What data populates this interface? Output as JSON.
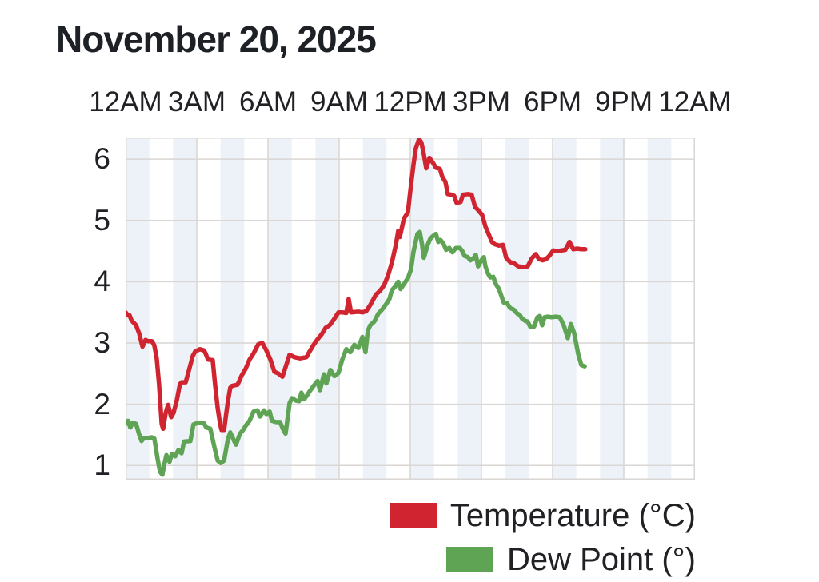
{
  "title": "November 20, 2025",
  "colors": {
    "temperature": "#d02530",
    "dew_point": "#5fa354",
    "band": "#edf2f8",
    "gridline": "#d9d6d3",
    "text": "#202124"
  },
  "legend": {
    "position": "bottom-right",
    "temperature_label": "Temperature (°C)",
    "dew_point_label": "Dew Point (°)"
  },
  "chart_data": {
    "type": "line",
    "title": "November 20, 2025",
    "xlabel": "",
    "ylabel": "",
    "x_axis": {
      "position": "top",
      "unit": "hour-of-day",
      "range_hours": [
        0,
        24
      ],
      "tick_hours": [
        0,
        3,
        6,
        9,
        12,
        15,
        18,
        21,
        24
      ],
      "tick_labels": [
        "12AM",
        "3AM",
        "6AM",
        "9AM",
        "12PM",
        "3PM",
        "6PM",
        "9PM",
        "12AM"
      ]
    },
    "y_axis": {
      "ticks": [
        1,
        2,
        3,
        4,
        5,
        6
      ],
      "range": [
        0.769,
        6.354
      ]
    },
    "grid": true,
    "background_bands": "alternating 1-hour vertical bands, even hours shaded light blue",
    "legend_position": "bottom-right",
    "series": [
      {
        "name": "Temperature (°C)",
        "color": "#d02530",
        "points": [
          [
            0.0,
            3.5
          ],
          [
            0.1,
            3.45
          ],
          [
            0.17,
            3.45
          ],
          [
            0.25,
            3.37
          ],
          [
            0.34,
            3.33
          ],
          [
            0.44,
            3.29
          ],
          [
            0.51,
            3.22
          ],
          [
            0.57,
            3.16
          ],
          [
            0.71,
            2.94
          ],
          [
            0.84,
            3.05
          ],
          [
            0.94,
            3.03
          ],
          [
            1.11,
            3.03
          ],
          [
            1.21,
            2.96
          ],
          [
            1.31,
            2.75
          ],
          [
            1.41,
            2.33
          ],
          [
            1.52,
            1.68
          ],
          [
            1.58,
            1.6
          ],
          [
            1.69,
            1.86
          ],
          [
            1.79,
            1.99
          ],
          [
            1.92,
            1.79
          ],
          [
            2.02,
            1.86
          ],
          [
            2.16,
            2.07
          ],
          [
            2.29,
            2.33
          ],
          [
            2.36,
            2.36
          ],
          [
            2.53,
            2.36
          ],
          [
            2.7,
            2.6
          ],
          [
            2.83,
            2.79
          ],
          [
            2.93,
            2.86
          ],
          [
            3.13,
            2.9
          ],
          [
            3.3,
            2.88
          ],
          [
            3.37,
            2.83
          ],
          [
            3.47,
            2.73
          ],
          [
            3.67,
            2.72
          ],
          [
            3.77,
            2.33
          ],
          [
            3.88,
            1.94
          ],
          [
            3.98,
            1.68
          ],
          [
            4.04,
            1.58
          ],
          [
            4.15,
            1.58
          ],
          [
            4.25,
            1.88
          ],
          [
            4.31,
            2.05
          ],
          [
            4.41,
            2.27
          ],
          [
            4.48,
            2.3
          ],
          [
            4.72,
            2.32
          ],
          [
            4.89,
            2.47
          ],
          [
            5.06,
            2.58
          ],
          [
            5.22,
            2.73
          ],
          [
            5.39,
            2.83
          ],
          [
            5.59,
            2.98
          ],
          [
            5.76,
            3.0
          ],
          [
            5.93,
            2.88
          ],
          [
            6.1,
            2.73
          ],
          [
            6.27,
            2.53
          ],
          [
            6.44,
            2.5
          ],
          [
            6.61,
            2.45
          ],
          [
            6.77,
            2.64
          ],
          [
            6.91,
            2.81
          ],
          [
            7.11,
            2.77
          ],
          [
            7.35,
            2.75
          ],
          [
            7.62,
            2.77
          ],
          [
            7.75,
            2.86
          ],
          [
            7.92,
            2.97
          ],
          [
            8.09,
            3.06
          ],
          [
            8.26,
            3.14
          ],
          [
            8.43,
            3.25
          ],
          [
            8.6,
            3.29
          ],
          [
            8.77,
            3.38
          ],
          [
            8.97,
            3.5
          ],
          [
            9.13,
            3.5
          ],
          [
            9.3,
            3.49
          ],
          [
            9.4,
            3.72
          ],
          [
            9.5,
            3.5
          ],
          [
            9.81,
            3.51
          ],
          [
            9.98,
            3.5
          ],
          [
            10.14,
            3.52
          ],
          [
            10.31,
            3.62
          ],
          [
            10.55,
            3.79
          ],
          [
            10.72,
            3.85
          ],
          [
            10.89,
            3.94
          ],
          [
            11.06,
            4.1
          ],
          [
            11.22,
            4.31
          ],
          [
            11.39,
            4.6
          ],
          [
            11.49,
            4.83
          ],
          [
            11.56,
            4.73
          ],
          [
            11.73,
            5.03
          ],
          [
            11.9,
            5.13
          ],
          [
            12.0,
            5.48
          ],
          [
            12.13,
            5.9
          ],
          [
            12.23,
            6.17
          ],
          [
            12.37,
            6.33
          ],
          [
            12.47,
            6.27
          ],
          [
            12.57,
            6.08
          ],
          [
            12.67,
            5.85
          ],
          [
            12.81,
            6.02
          ],
          [
            12.94,
            5.95
          ],
          [
            13.08,
            5.86
          ],
          [
            13.25,
            5.84
          ],
          [
            13.35,
            5.71
          ],
          [
            13.48,
            5.63
          ],
          [
            13.58,
            5.43
          ],
          [
            13.75,
            5.42
          ],
          [
            13.85,
            5.4
          ],
          [
            13.95,
            5.29
          ],
          [
            14.12,
            5.3
          ],
          [
            14.22,
            5.42
          ],
          [
            14.43,
            5.43
          ],
          [
            14.59,
            5.42
          ],
          [
            14.73,
            5.22
          ],
          [
            14.86,
            5.17
          ],
          [
            15.03,
            5.09
          ],
          [
            15.17,
            4.9
          ],
          [
            15.3,
            4.78
          ],
          [
            15.44,
            4.65
          ],
          [
            15.57,
            4.61
          ],
          [
            15.74,
            4.59
          ],
          [
            15.91,
            4.6
          ],
          [
            16.04,
            4.39
          ],
          [
            16.21,
            4.32
          ],
          [
            16.38,
            4.3
          ],
          [
            16.55,
            4.25
          ],
          [
            16.78,
            4.24
          ],
          [
            16.95,
            4.25
          ],
          [
            17.12,
            4.38
          ],
          [
            17.29,
            4.45
          ],
          [
            17.42,
            4.37
          ],
          [
            17.59,
            4.35
          ],
          [
            17.73,
            4.37
          ],
          [
            17.86,
            4.42
          ],
          [
            18.03,
            4.51
          ],
          [
            18.2,
            4.5
          ],
          [
            18.37,
            4.51
          ],
          [
            18.54,
            4.52
          ],
          [
            18.71,
            4.65
          ],
          [
            18.87,
            4.53
          ],
          [
            19.04,
            4.54
          ],
          [
            19.21,
            4.53
          ],
          [
            19.38,
            4.53
          ]
        ]
      },
      {
        "name": "Dew Point (°)",
        "color": "#5fa354",
        "points": [
          [
            0.0,
            1.68
          ],
          [
            0.1,
            1.73
          ],
          [
            0.2,
            1.62
          ],
          [
            0.3,
            1.7
          ],
          [
            0.44,
            1.68
          ],
          [
            0.57,
            1.51
          ],
          [
            0.67,
            1.4
          ],
          [
            0.78,
            1.45
          ],
          [
            0.94,
            1.45
          ],
          [
            1.11,
            1.46
          ],
          [
            1.21,
            1.44
          ],
          [
            1.35,
            1.1
          ],
          [
            1.45,
            0.9
          ],
          [
            1.55,
            0.85
          ],
          [
            1.62,
            1.0
          ],
          [
            1.72,
            1.17
          ],
          [
            1.85,
            1.06
          ],
          [
            1.95,
            1.19
          ],
          [
            2.09,
            1.15
          ],
          [
            2.22,
            1.25
          ],
          [
            2.36,
            1.2
          ],
          [
            2.46,
            1.39
          ],
          [
            2.73,
            1.4
          ],
          [
            2.86,
            1.67
          ],
          [
            3.0,
            1.69
          ],
          [
            3.17,
            1.7
          ],
          [
            3.3,
            1.69
          ],
          [
            3.4,
            1.62
          ],
          [
            3.57,
            1.6
          ],
          [
            3.74,
            1.3
          ],
          [
            3.88,
            1.08
          ],
          [
            4.01,
            1.04
          ],
          [
            4.15,
            1.08
          ],
          [
            4.31,
            1.43
          ],
          [
            4.41,
            1.54
          ],
          [
            4.55,
            1.42
          ],
          [
            4.65,
            1.34
          ],
          [
            4.82,
            1.52
          ],
          [
            4.95,
            1.58
          ],
          [
            5.06,
            1.65
          ],
          [
            5.22,
            1.73
          ],
          [
            5.39,
            1.88
          ],
          [
            5.56,
            1.9
          ],
          [
            5.66,
            1.8
          ],
          [
            5.83,
            1.9
          ],
          [
            5.93,
            1.84
          ],
          [
            6.07,
            1.88
          ],
          [
            6.17,
            1.73
          ],
          [
            6.34,
            1.71
          ],
          [
            6.51,
            1.71
          ],
          [
            6.67,
            1.56
          ],
          [
            6.74,
            1.52
          ],
          [
            6.91,
            2.02
          ],
          [
            7.01,
            2.1
          ],
          [
            7.18,
            2.06
          ],
          [
            7.31,
            2.05
          ],
          [
            7.41,
            2.19
          ],
          [
            7.52,
            2.08
          ],
          [
            7.65,
            2.15
          ],
          [
            7.75,
            2.21
          ],
          [
            7.92,
            2.3
          ],
          [
            8.09,
            2.38
          ],
          [
            8.19,
            2.23
          ],
          [
            8.36,
            2.49
          ],
          [
            8.46,
            2.34
          ],
          [
            8.63,
            2.56
          ],
          [
            8.8,
            2.46
          ],
          [
            8.97,
            2.51
          ],
          [
            9.13,
            2.73
          ],
          [
            9.3,
            2.9
          ],
          [
            9.47,
            2.85
          ],
          [
            9.64,
            2.97
          ],
          [
            9.81,
            2.92
          ],
          [
            9.98,
            3.1
          ],
          [
            10.11,
            2.85
          ],
          [
            10.21,
            3.2
          ],
          [
            10.31,
            3.29
          ],
          [
            10.48,
            3.35
          ],
          [
            10.65,
            3.48
          ],
          [
            10.82,
            3.55
          ],
          [
            10.99,
            3.64
          ],
          [
            11.12,
            3.72
          ],
          [
            11.22,
            3.86
          ],
          [
            11.36,
            3.92
          ],
          [
            11.49,
            4.0
          ],
          [
            11.59,
            3.88
          ],
          [
            11.73,
            3.96
          ],
          [
            11.9,
            4.06
          ],
          [
            12.03,
            4.2
          ],
          [
            12.13,
            4.48
          ],
          [
            12.3,
            4.78
          ],
          [
            12.4,
            4.81
          ],
          [
            12.5,
            4.6
          ],
          [
            12.57,
            4.39
          ],
          [
            12.74,
            4.61
          ],
          [
            12.84,
            4.7
          ],
          [
            12.94,
            4.74
          ],
          [
            13.08,
            4.78
          ],
          [
            13.18,
            4.65
          ],
          [
            13.28,
            4.68
          ],
          [
            13.41,
            4.61
          ],
          [
            13.51,
            4.52
          ],
          [
            13.65,
            4.55
          ],
          [
            13.78,
            4.48
          ],
          [
            13.92,
            4.55
          ],
          [
            14.09,
            4.55
          ],
          [
            14.19,
            4.5
          ],
          [
            14.29,
            4.42
          ],
          [
            14.43,
            4.4
          ],
          [
            14.53,
            4.35
          ],
          [
            14.66,
            4.38
          ],
          [
            14.76,
            4.44
          ],
          [
            14.86,
            4.25
          ],
          [
            15.0,
            4.35
          ],
          [
            15.1,
            4.4
          ],
          [
            15.17,
            4.25
          ],
          [
            15.27,
            4.14
          ],
          [
            15.37,
            4.07
          ],
          [
            15.5,
            4.08
          ],
          [
            15.61,
            3.96
          ],
          [
            15.74,
            3.88
          ],
          [
            15.84,
            3.77
          ],
          [
            15.94,
            3.66
          ],
          [
            16.08,
            3.65
          ],
          [
            16.21,
            3.57
          ],
          [
            16.34,
            3.55
          ],
          [
            16.51,
            3.48
          ],
          [
            16.61,
            3.46
          ],
          [
            16.71,
            3.4
          ],
          [
            16.85,
            3.36
          ],
          [
            16.95,
            3.35
          ],
          [
            17.05,
            3.27
          ],
          [
            17.22,
            3.27
          ],
          [
            17.36,
            3.42
          ],
          [
            17.46,
            3.44
          ],
          [
            17.56,
            3.29
          ],
          [
            17.66,
            3.42
          ],
          [
            17.8,
            3.43
          ],
          [
            17.96,
            3.42
          ],
          [
            18.13,
            3.43
          ],
          [
            18.3,
            3.42
          ],
          [
            18.47,
            3.29
          ],
          [
            18.64,
            3.08
          ],
          [
            18.77,
            3.31
          ],
          [
            18.91,
            3.16
          ],
          [
            19.08,
            2.82
          ],
          [
            19.21,
            2.64
          ],
          [
            19.35,
            2.62
          ]
        ]
      }
    ]
  }
}
